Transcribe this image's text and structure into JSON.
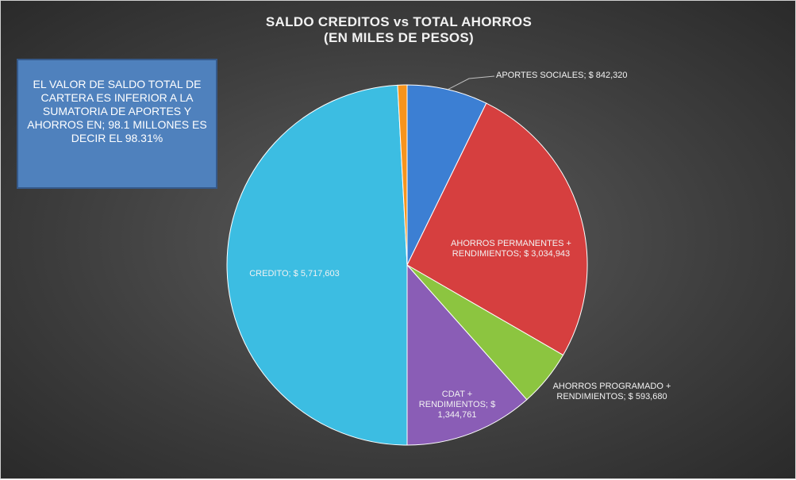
{
  "chart_data": {
    "type": "pie",
    "title": "SALDO CREDITOS vs TOTAL AHORROS",
    "subtitle": "(EN MILES DE PESOS)",
    "annotation": "EL VALOR DE SALDO TOTAL DE CARTERA ES INFERIOR A LA SUMATORIA DE APORTES Y AHORROS EN; 98.1 MILLONES ES DECIR EL 98.31%",
    "categories": [
      "APORTES SOCIALES;",
      "AHORROS PERMANENTES + RENDIMIENTOS;",
      "AHORROS PROGRAMADO + RENDIMIENTOS;",
      "CDAT + RENDIMIENTOS;",
      "CREDITO;",
      null
    ],
    "values": [
      842320,
      3034943,
      593680,
      1344761,
      5717603,
      98101
    ],
    "value_labels": [
      "$ 842,320",
      "$ 3,034,943",
      "$ 593,680",
      "$ 1,344,761",
      "$ 5,717,603",
      null
    ],
    "colors": [
      "#3c7fd3",
      "#d63f3f",
      "#8cc540",
      "#8a5db6",
      "#3cbde2",
      "#f7941d"
    ]
  }
}
